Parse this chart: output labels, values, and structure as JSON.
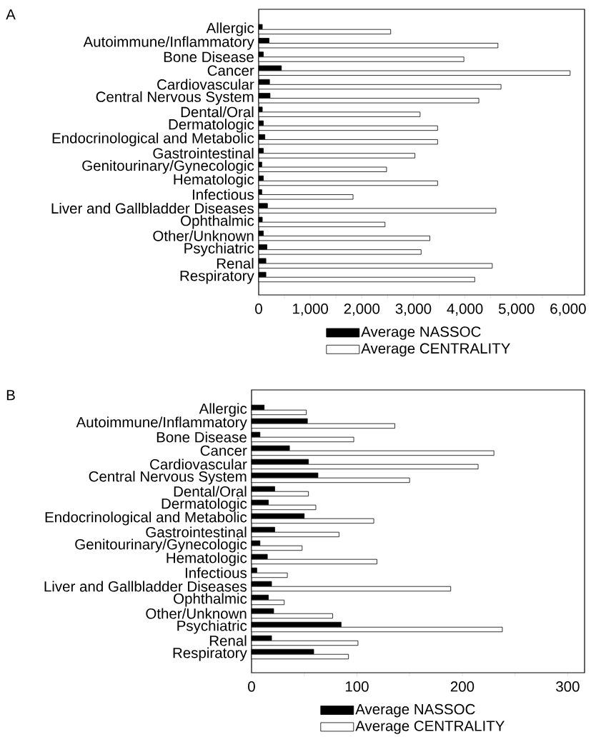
{
  "chart_data": [
    {
      "type": "bar",
      "orientation": "horizontal",
      "title": "A",
      "legend": "bottom",
      "categories": [
        "Allergic",
        "Autoimmune/Inflammatory",
        "Bone Disease",
        "Cancer",
        "Cardiovascular",
        "Central Nervous System",
        "Dental/Oral",
        "Dermatologic",
        "Endocrinological and Metabolic",
        "Gastrointestinal",
        "Genitourinary/Gynecologic",
        "Hematologic",
        "Infectious",
        "Liver and Gallbladder Diseases",
        "Ophthalmic",
        "Other/Unknown",
        "Psychiatric",
        "Renal",
        "Respiratory"
      ],
      "series": [
        {
          "name": "Average NASSOC",
          "color": "#000000",
          "values": [
            70,
            200,
            90,
            440,
            210,
            220,
            70,
            90,
            120,
            90,
            60,
            90,
            60,
            170,
            70,
            90,
            160,
            140,
            140
          ]
        },
        {
          "name": "Average CENTRALITY",
          "color": "#ffffff",
          "values": [
            2560,
            4640,
            3980,
            6040,
            4700,
            4270,
            3130,
            3470,
            3470,
            3030,
            2480,
            3470,
            1830,
            4600,
            2450,
            3320,
            3150,
            4530,
            4190
          ]
        }
      ],
      "xlim": [
        0,
        6320
      ],
      "xticks": [
        0,
        {
          "value": 500,
          "label": null
        },
        {
          "value": 1000,
          "label": "1,000"
        },
        {
          "value": 1500,
          "label": null
        },
        {
          "value": 2000,
          "label": "2,000"
        },
        {
          "value": 2500,
          "label": null
        },
        {
          "value": 3000,
          "label": "3,000"
        },
        {
          "value": 3500,
          "label": null
        },
        {
          "value": 4000,
          "label": "4,000"
        },
        {
          "value": 4500,
          "label": null
        },
        {
          "value": 5000,
          "label": "5,000"
        },
        {
          "value": 5500,
          "label": null
        },
        {
          "value": 6000,
          "label": "6,000"
        }
      ]
    },
    {
      "type": "bar",
      "orientation": "horizontal",
      "title": "B",
      "legend": "bottom",
      "categories": [
        "Allergic",
        "Autoimmune/Inflammatory",
        "Bone Disease",
        "Cancer",
        "Cardiovascular",
        "Central Nervous System",
        "Dental/Oral",
        "Dermatologic",
        "Endocrinological and Metabolic",
        "Gastrointestinal",
        "Genitourinary/Gynecologic",
        "Hematologic",
        "Infectious",
        "Liver and Gallbladder Diseases",
        "Ophthalmic",
        "Other/Unknown",
        "Psychiatric",
        "Renal",
        "Respiratory"
      ],
      "series": [
        {
          "name": "Average NASSOC",
          "color": "#000000",
          "values": [
            12,
            53,
            8,
            36,
            54,
            63,
            22,
            16,
            50,
            22,
            8,
            15,
            5,
            19,
            16,
            21,
            85,
            19,
            59
          ]
        },
        {
          "name": "Average CENTRALITY",
          "color": "#ffffff",
          "values": [
            52,
            136,
            97,
            230,
            215,
            150,
            54,
            61,
            116,
            83,
            48,
            119,
            34,
            189,
            31,
            77,
            238,
            101,
            92
          ]
        }
      ],
      "xlim": [
        0,
        316
      ],
      "xticks": [
        0,
        {
          "value": 50,
          "label": null
        },
        100,
        {
          "value": 150,
          "label": null
        },
        200,
        {
          "value": 250,
          "label": null
        },
        300
      ]
    }
  ]
}
